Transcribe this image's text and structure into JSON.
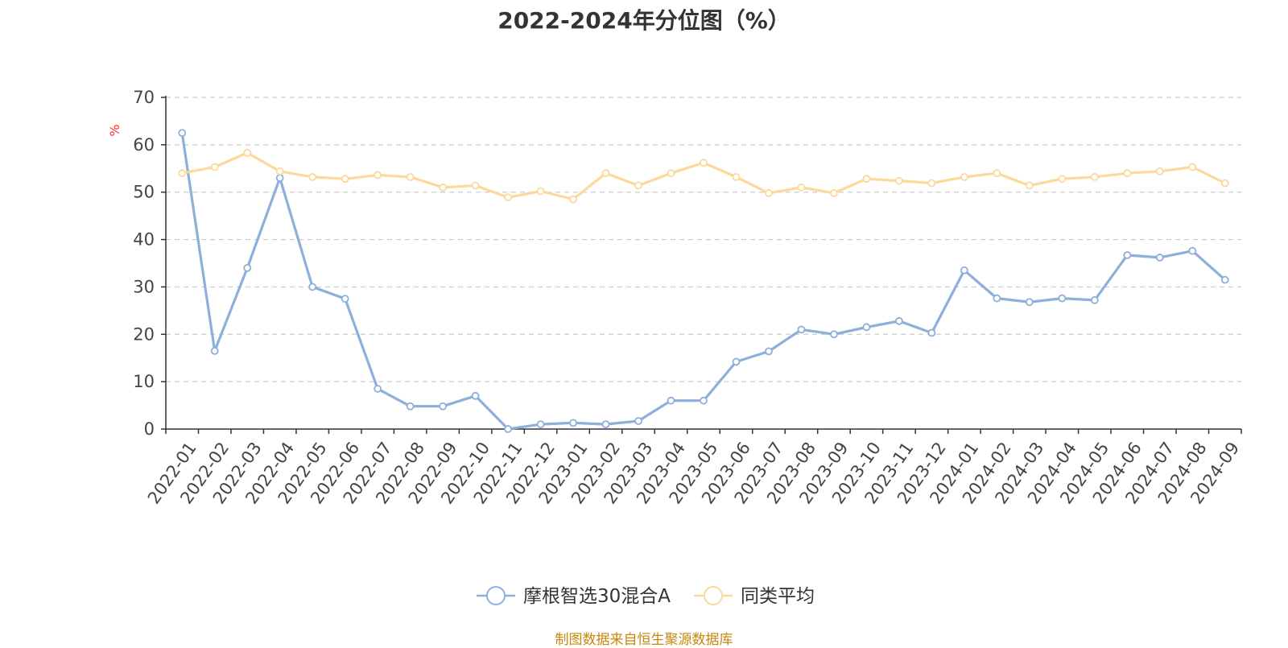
{
  "title": "2022-2024年分位图（%）",
  "source": "制图数据来自恒生聚源数据库",
  "chart_data": {
    "type": "line",
    "ylabel": "%",
    "ylim": [
      0,
      70
    ],
    "yticks": [
      0,
      10,
      20,
      30,
      40,
      50,
      60,
      70
    ],
    "grid": true,
    "legend_position": "bottom-center",
    "categories": [
      "2022-01",
      "2022-02",
      "2022-03",
      "2022-04",
      "2022-05",
      "2022-06",
      "2022-07",
      "2022-08",
      "2022-09",
      "2022-10",
      "2022-11",
      "2022-12",
      "2023-01",
      "2023-02",
      "2023-03",
      "2023-04",
      "2023-05",
      "2023-06",
      "2023-07",
      "2023-08",
      "2023-09",
      "2023-10",
      "2023-11",
      "2023-12",
      "2024-01",
      "2024-02",
      "2024-03",
      "2024-04",
      "2024-05",
      "2024-06",
      "2024-07",
      "2024-08",
      "2024-09"
    ],
    "series": [
      {
        "name": "摩根智选30混合A",
        "color": "#8eaedb",
        "values": [
          62.5,
          16.5,
          34,
          53,
          30,
          27.5,
          8.5,
          4.8,
          4.8,
          7,
          0,
          1,
          1.3,
          1,
          1.7,
          6,
          6,
          14.2,
          16.4,
          21,
          20,
          21.5,
          22.8,
          20.3,
          33.5,
          27.6,
          26.8,
          27.6,
          27.2,
          36.7,
          36.2,
          37.6,
          31.5
        ]
      },
      {
        "name": "同类平均",
        "color": "#fbd99a",
        "values": [
          54,
          55.3,
          58.3,
          54.4,
          53.2,
          52.8,
          53.6,
          53.2,
          51,
          51.4,
          48.9,
          50.2,
          48.5,
          54,
          51.4,
          54,
          56.2,
          53.2,
          49.8,
          51,
          49.8,
          52.8,
          52.4,
          51.9,
          53.2,
          54,
          51.4,
          52.8,
          53.2,
          54,
          54.4,
          55.3,
          51.9
        ]
      }
    ]
  }
}
